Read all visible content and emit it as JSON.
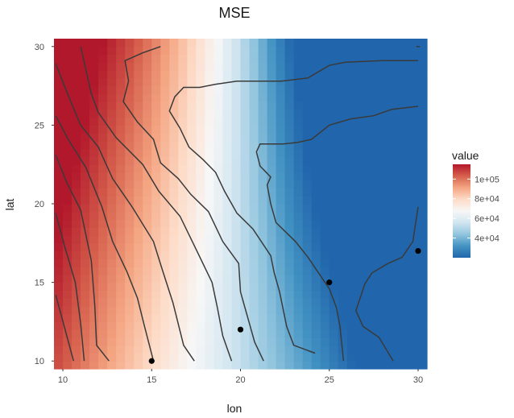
{
  "chart_data": {
    "type": "heatmap",
    "title": "MSE",
    "xlabel": "lon",
    "ylabel": "lat",
    "xlim": [
      9.5,
      30.5
    ],
    "ylim": [
      9.5,
      30.5
    ],
    "x_ticks": [
      10,
      15,
      20,
      25,
      30
    ],
    "y_ticks": [
      10,
      15,
      20,
      25,
      30
    ],
    "grid": true,
    "grid_resolution": 0.5,
    "fill_scale": {
      "name": "value",
      "min": 20000,
      "max": 115000,
      "colors": [
        "#2166ac",
        "#4393c3",
        "#92c5de",
        "#d1e5f0",
        "#f7f7f7",
        "#fddbc7",
        "#f4a582",
        "#d6604d",
        "#b2182b"
      ]
    },
    "legend": {
      "title": "value",
      "position": "right",
      "ticks": [
        {
          "value": 40000,
          "label": "4e+04"
        },
        {
          "value": 60000,
          "label": "6e+04"
        },
        {
          "value": 80000,
          "label": "8e+04"
        },
        {
          "value": 100000,
          "label": "1e+05"
        }
      ]
    },
    "contour_lines": [
      {
        "level": 110000,
        "points": [
          [
            9.6,
            14.2
          ],
          [
            10.6,
            10.0
          ]
        ]
      },
      {
        "level": 100000,
        "points": [
          [
            9.6,
            19.4
          ],
          [
            10.1,
            17.3
          ],
          [
            10.7,
            15.0
          ],
          [
            11.0,
            12.4
          ],
          [
            11.2,
            10.0
          ]
        ]
      },
      {
        "level": 90000,
        "points": [
          [
            9.6,
            23.1
          ],
          [
            10.2,
            21.4
          ],
          [
            11.0,
            19.6
          ],
          [
            11.6,
            16.4
          ],
          [
            11.8,
            13.5
          ],
          [
            11.9,
            11.0
          ],
          [
            12.6,
            10.0
          ]
        ]
      },
      {
        "level": 80000,
        "points": [
          [
            9.6,
            25.6
          ],
          [
            10.3,
            24.1
          ],
          [
            11.3,
            22.3
          ],
          [
            12.2,
            19.8
          ],
          [
            12.8,
            17.6
          ],
          [
            13.6,
            15.7
          ],
          [
            14.2,
            14.0
          ],
          [
            14.6,
            12.2
          ],
          [
            15.1,
            10.0
          ]
        ]
      },
      {
        "level": 70000,
        "points": [
          [
            9.6,
            28.9
          ],
          [
            10.3,
            26.9
          ],
          [
            11.0,
            25.0
          ],
          [
            12.0,
            23.6
          ],
          [
            12.8,
            21.6
          ],
          [
            13.9,
            19.8
          ],
          [
            15.1,
            17.6
          ],
          [
            15.6,
            15.8
          ],
          [
            16.2,
            13.7
          ],
          [
            16.8,
            11.0
          ],
          [
            17.4,
            10.0
          ]
        ]
      },
      {
        "level": 60000,
        "points": [
          [
            11.0,
            30.0
          ],
          [
            11.3,
            28.5
          ],
          [
            11.6,
            27.0
          ],
          [
            12.0,
            25.8
          ],
          [
            13.0,
            24.2
          ],
          [
            14.5,
            22.5
          ],
          [
            15.4,
            20.8
          ],
          [
            16.6,
            19.2
          ],
          [
            17.5,
            17.1
          ],
          [
            18.4,
            15.0
          ],
          [
            18.7,
            13.4
          ],
          [
            19.0,
            11.6
          ],
          [
            19.5,
            10.0
          ]
        ]
      },
      {
        "level": 50000,
        "points": [
          [
            15.5,
            30.0
          ],
          [
            14.5,
            29.6
          ],
          [
            13.5,
            29.1
          ],
          [
            13.7,
            27.8
          ],
          [
            13.4,
            26.5
          ],
          [
            14.2,
            25.2
          ],
          [
            15.1,
            24.1
          ],
          [
            15.5,
            22.6
          ],
          [
            16.5,
            21.6
          ],
          [
            17.2,
            20.6
          ],
          [
            18.2,
            19.5
          ],
          [
            19.0,
            17.6
          ],
          [
            19.9,
            16.2
          ],
          [
            20.0,
            14.4
          ],
          [
            20.4,
            12.8
          ],
          [
            20.8,
            11.2
          ],
          [
            21.3,
            10.0
          ]
        ]
      },
      {
        "level": 40000,
        "points": [
          [
            30.0,
            29.1
          ],
          [
            28.0,
            29.1
          ],
          [
            25.9,
            29.0
          ],
          [
            25.0,
            28.8
          ],
          [
            23.8,
            28.0
          ],
          [
            22.3,
            27.8
          ],
          [
            21.1,
            27.8
          ],
          [
            19.8,
            27.8
          ],
          [
            18.6,
            27.6
          ],
          [
            17.7,
            27.4
          ],
          [
            16.8,
            27.4
          ],
          [
            16.3,
            26.8
          ],
          [
            16.0,
            25.9
          ],
          [
            16.6,
            24.8
          ],
          [
            17.1,
            23.6
          ],
          [
            17.9,
            22.8
          ],
          [
            18.6,
            22.0
          ],
          [
            19.1,
            20.8
          ],
          [
            19.8,
            19.4
          ],
          [
            20.7,
            18.4
          ],
          [
            21.7,
            16.7
          ],
          [
            21.9,
            15.6
          ],
          [
            22.2,
            14.4
          ],
          [
            22.6,
            12.2
          ],
          [
            23.0,
            11.0
          ],
          [
            24.2,
            10.5
          ]
        ]
      },
      {
        "level": 30000,
        "points": [
          [
            30.0,
            26.2
          ],
          [
            28.5,
            26.0
          ],
          [
            27.5,
            25.6
          ],
          [
            26.2,
            25.4
          ],
          [
            25.0,
            25.0
          ],
          [
            24.0,
            24.1
          ],
          [
            23.2,
            23.9
          ],
          [
            22.4,
            23.8
          ],
          [
            21.1,
            23.8
          ],
          [
            20.9,
            23.3
          ],
          [
            21.1,
            22.4
          ],
          [
            21.7,
            21.7
          ],
          [
            21.5,
            21.2
          ],
          [
            21.7,
            20.0
          ],
          [
            22.0,
            18.8
          ],
          [
            23.1,
            17.6
          ],
          [
            23.8,
            16.6
          ],
          [
            24.4,
            15.6
          ],
          [
            25.0,
            14.6
          ],
          [
            25.4,
            13.4
          ],
          [
            25.6,
            12.2
          ],
          [
            25.8,
            10.0
          ]
        ]
      },
      {
        "level": 25000,
        "points": [
          [
            30.0,
            19.8
          ],
          [
            29.7,
            17.6
          ],
          [
            29.1,
            16.6
          ],
          [
            28.3,
            16.2
          ],
          [
            27.4,
            15.6
          ],
          [
            27.0,
            14.9
          ],
          [
            26.5,
            13.2
          ],
          [
            26.9,
            12.2
          ],
          [
            27.8,
            11.5
          ],
          [
            28.6,
            10.0
          ]
        ]
      },
      {
        "level": 20000,
        "points": [
          [
            29.9,
            30.0
          ],
          [
            30.1,
            30.0
          ]
        ]
      }
    ],
    "points": [
      {
        "x": 15,
        "y": 10
      },
      {
        "x": 20,
        "y": 12
      },
      {
        "x": 25,
        "y": 15
      },
      {
        "x": 30,
        "y": 17
      }
    ]
  }
}
